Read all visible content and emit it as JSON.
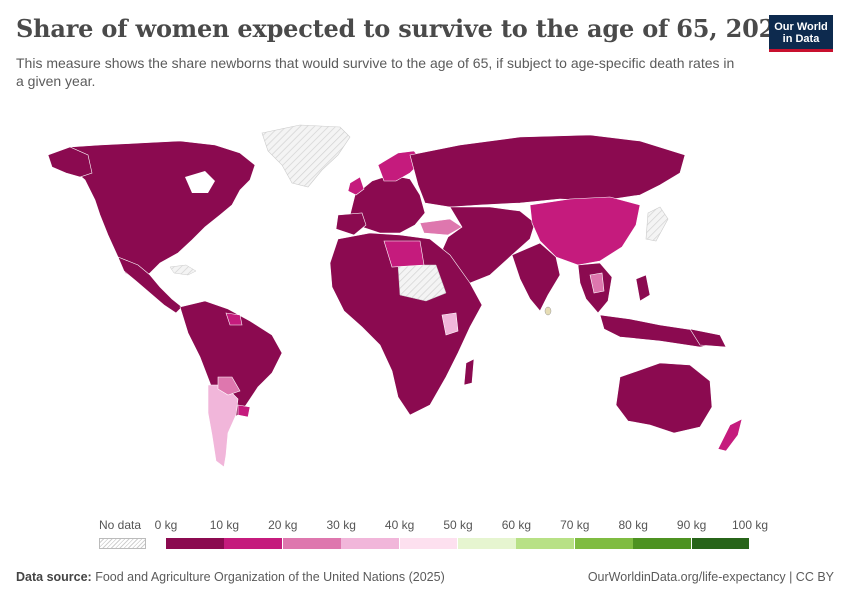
{
  "header": {
    "title": "Share of women expected to survive to the age of 65, 2023",
    "subtitle": "This measure shows the share newborns that would survive to the age of 65, if subject to age-specific death rates in a given year."
  },
  "logo": {
    "line1": "Our World",
    "line2": "in Data"
  },
  "legend": {
    "no_data_label": "No data",
    "labels": [
      "0 kg",
      "10 kg",
      "20 kg",
      "30 kg",
      "40 kg",
      "50 kg",
      "60 kg",
      "70 kg",
      "80 kg",
      "90 kg",
      "100 kg"
    ],
    "colors": [
      "#8b0a50",
      "#c51b7d",
      "#de77ae",
      "#f1b6da",
      "#fde0ef",
      "#e6f5d0",
      "#b8e186",
      "#7fbc41",
      "#4d9221",
      "#276419"
    ]
  },
  "footer": {
    "source_label": "Data source:",
    "source_text": "Food and Agriculture Organization of the United Nations (2025)",
    "link": "OurWorldinData.org/life-expectancy | CC BY"
  },
  "colors": {
    "primary": "#8b0a50",
    "mid": "#c51b7d",
    "light": "#de77ae",
    "lighter": "#f1b6da",
    "palest": "#fde0ef",
    "no_data_fill": "#f2f2f2",
    "border": "#ffffff"
  }
}
